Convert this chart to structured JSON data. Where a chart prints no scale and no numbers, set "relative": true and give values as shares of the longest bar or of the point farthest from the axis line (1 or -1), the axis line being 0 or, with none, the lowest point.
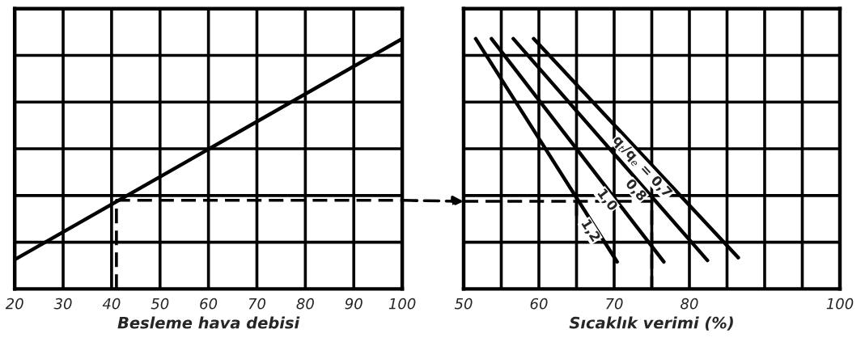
{
  "chart_data": [
    {
      "type": "line",
      "xlabel": "Besleme hava debisi",
      "relative": true,
      "xlim": [
        20,
        100
      ],
      "xticks": [
        20,
        30,
        40,
        50,
        60,
        70,
        80,
        90,
        100
      ],
      "grid": true,
      "tick_labels": "x",
      "series": [
        {
          "color": "#000000",
          "x": [
            20,
            100
          ],
          "values": [
            0.117,
            1
          ],
          "line_style": "solid"
        },
        {
          "color": "#000000",
          "x": [
            41,
            41,
            100
          ],
          "values": [
            0,
            0.354,
            0.354
          ],
          "line_style": "dashed"
        }
      ]
    },
    {
      "type": "line",
      "xlabel": "Sıcaklık verimi (%)",
      "relative": true,
      "xlim": [
        50,
        100
      ],
      "xticks": [
        50,
        {
          "value": 55,
          "label": null
        },
        60,
        {
          "value": 65,
          "label": null
        },
        70,
        {
          "value": 75,
          "label": null
        },
        80,
        {
          "value": 85,
          "label": null
        },
        {
          "value": 90,
          "label": null
        },
        {
          "value": 95,
          "label": null
        },
        100
      ],
      "grid": true,
      "tick_labels": "x",
      "series": [
        {
          "name": "q$_{t}$/q$_{e}$ = 0,7",
          "color": "#000000",
          "x": [
            59.3,
            86.5
          ],
          "values": [
            1,
            0.125
          ],
          "line_style": "solid"
        },
        {
          "name": "0,8",
          "color": "#000000",
          "x": [
            56.6,
            82.4
          ],
          "values": [
            1,
            0.114
          ],
          "line_style": "solid"
        },
        {
          "name": "1,0",
          "color": "#000000",
          "x": [
            53.7,
            76.6
          ],
          "values": [
            1,
            0.108
          ],
          "line_style": "solid"
        },
        {
          "name": "1,2",
          "color": "#000000",
          "x": [
            51.6,
            70.4
          ],
          "values": [
            1,
            0.108
          ],
          "line_style": "solid"
        },
        {
          "color": "#000000",
          "x": [
            50,
            75,
            75
          ],
          "values": [
            0.35,
            0.35,
            0
          ],
          "line_style": "dashed"
        },
        {
          "color": "#000000",
          "x": [
            65,
            65
          ],
          "values": [
            0.35,
            0.27
          ],
          "line_style": "dashed"
        }
      ]
    }
  ]
}
